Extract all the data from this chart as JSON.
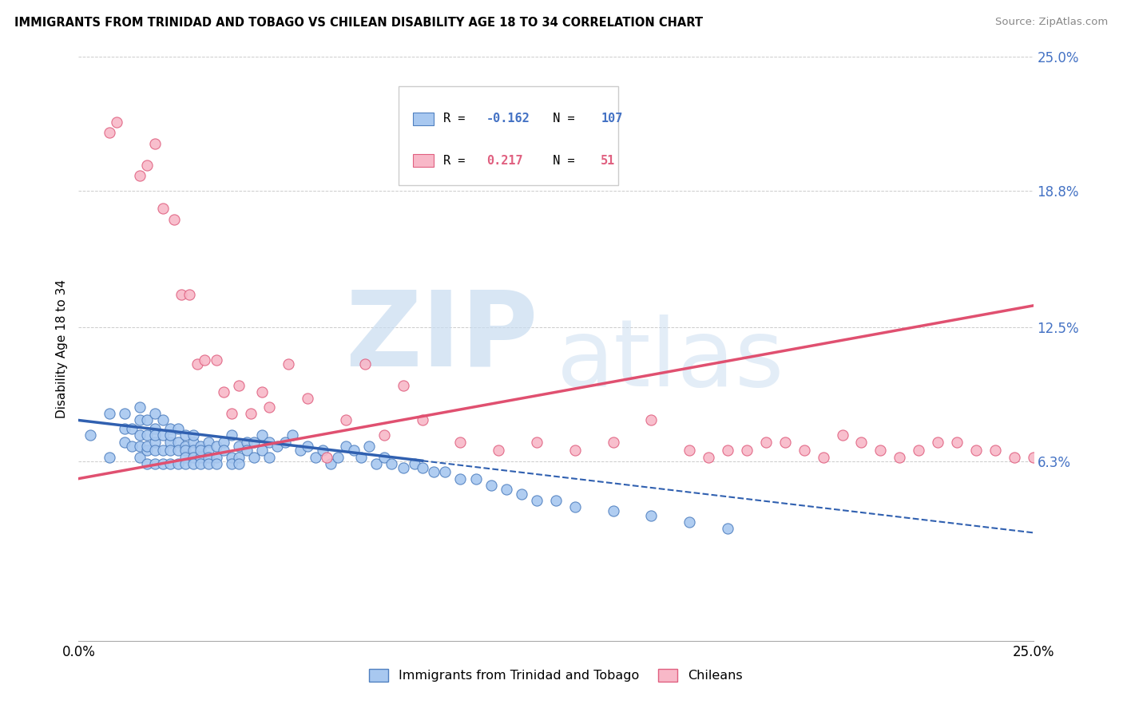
{
  "title": "IMMIGRANTS FROM TRINIDAD AND TOBAGO VS CHILEAN DISABILITY AGE 18 TO 34 CORRELATION CHART",
  "source": "Source: ZipAtlas.com",
  "ylabel": "Disability Age 18 to 34",
  "xmin": 0.0,
  "xmax": 0.25,
  "ymin": -0.02,
  "ymax": 0.25,
  "ytick_vals": [
    0.063,
    0.125,
    0.188,
    0.25
  ],
  "ytick_labels": [
    "6.3%",
    "12.5%",
    "18.8%",
    "25.0%"
  ],
  "blue_r": -0.162,
  "blue_n": 107,
  "pink_r": 0.217,
  "pink_n": 51,
  "blue_color": "#A8C8F0",
  "pink_color": "#F8B8C8",
  "blue_edge_color": "#5080C0",
  "pink_edge_color": "#E06080",
  "blue_line_color": "#3060B0",
  "pink_line_color": "#E05070",
  "legend_label_blue": "Immigrants from Trinidad and Tobago",
  "legend_label_pink": "Chileans",
  "watermark_zip": "ZIP",
  "watermark_atlas": "atlas",
  "blue_scatter_x": [
    0.003,
    0.008,
    0.008,
    0.012,
    0.012,
    0.012,
    0.014,
    0.014,
    0.016,
    0.016,
    0.016,
    0.016,
    0.016,
    0.018,
    0.018,
    0.018,
    0.018,
    0.018,
    0.02,
    0.02,
    0.02,
    0.02,
    0.02,
    0.02,
    0.022,
    0.022,
    0.022,
    0.022,
    0.024,
    0.024,
    0.024,
    0.024,
    0.024,
    0.026,
    0.026,
    0.026,
    0.026,
    0.028,
    0.028,
    0.028,
    0.028,
    0.028,
    0.03,
    0.03,
    0.03,
    0.03,
    0.03,
    0.032,
    0.032,
    0.032,
    0.032,
    0.034,
    0.034,
    0.034,
    0.034,
    0.036,
    0.036,
    0.036,
    0.038,
    0.038,
    0.04,
    0.04,
    0.04,
    0.042,
    0.042,
    0.042,
    0.044,
    0.044,
    0.046,
    0.046,
    0.048,
    0.048,
    0.05,
    0.05,
    0.052,
    0.054,
    0.056,
    0.058,
    0.06,
    0.062,
    0.064,
    0.066,
    0.068,
    0.07,
    0.072,
    0.074,
    0.076,
    0.078,
    0.08,
    0.082,
    0.085,
    0.088,
    0.09,
    0.093,
    0.096,
    0.1,
    0.104,
    0.108,
    0.112,
    0.116,
    0.12,
    0.125,
    0.13,
    0.14,
    0.15,
    0.16,
    0.17
  ],
  "blue_scatter_y": [
    0.075,
    0.085,
    0.065,
    0.085,
    0.072,
    0.078,
    0.07,
    0.078,
    0.082,
    0.088,
    0.075,
    0.07,
    0.065,
    0.082,
    0.075,
    0.068,
    0.062,
    0.07,
    0.085,
    0.078,
    0.072,
    0.068,
    0.075,
    0.062,
    0.082,
    0.075,
    0.068,
    0.062,
    0.078,
    0.072,
    0.068,
    0.075,
    0.062,
    0.078,
    0.072,
    0.068,
    0.062,
    0.075,
    0.07,
    0.068,
    0.065,
    0.062,
    0.072,
    0.068,
    0.065,
    0.062,
    0.075,
    0.07,
    0.065,
    0.062,
    0.068,
    0.072,
    0.068,
    0.065,
    0.062,
    0.07,
    0.065,
    0.062,
    0.072,
    0.068,
    0.065,
    0.062,
    0.075,
    0.07,
    0.065,
    0.062,
    0.072,
    0.068,
    0.072,
    0.065,
    0.068,
    0.075,
    0.065,
    0.072,
    0.07,
    0.072,
    0.075,
    0.068,
    0.07,
    0.065,
    0.068,
    0.062,
    0.065,
    0.07,
    0.068,
    0.065,
    0.07,
    0.062,
    0.065,
    0.062,
    0.06,
    0.062,
    0.06,
    0.058,
    0.058,
    0.055,
    0.055,
    0.052,
    0.05,
    0.048,
    0.045,
    0.045,
    0.042,
    0.04,
    0.038,
    0.035,
    0.032
  ],
  "pink_scatter_x": [
    0.008,
    0.01,
    0.016,
    0.018,
    0.02,
    0.022,
    0.025,
    0.027,
    0.029,
    0.031,
    0.033,
    0.036,
    0.038,
    0.04,
    0.042,
    0.045,
    0.048,
    0.05,
    0.055,
    0.06,
    0.065,
    0.07,
    0.075,
    0.08,
    0.085,
    0.09,
    0.1,
    0.11,
    0.12,
    0.13,
    0.14,
    0.15,
    0.16,
    0.165,
    0.17,
    0.175,
    0.18,
    0.185,
    0.19,
    0.195,
    0.2,
    0.205,
    0.21,
    0.215,
    0.22,
    0.225,
    0.23,
    0.235,
    0.24,
    0.245,
    0.25
  ],
  "pink_scatter_y": [
    0.215,
    0.22,
    0.195,
    0.2,
    0.21,
    0.18,
    0.175,
    0.14,
    0.14,
    0.108,
    0.11,
    0.11,
    0.095,
    0.085,
    0.098,
    0.085,
    0.095,
    0.088,
    0.108,
    0.092,
    0.065,
    0.082,
    0.108,
    0.075,
    0.098,
    0.082,
    0.072,
    0.068,
    0.072,
    0.068,
    0.072,
    0.082,
    0.068,
    0.065,
    0.068,
    0.068,
    0.072,
    0.072,
    0.068,
    0.065,
    0.075,
    0.072,
    0.068,
    0.065,
    0.068,
    0.072,
    0.072,
    0.068,
    0.068,
    0.065,
    0.065
  ],
  "blue_trend_x": [
    0.0,
    0.25
  ],
  "blue_trend_y_start": 0.082,
  "blue_trend_y_end": 0.03,
  "pink_trend_x": [
    0.0,
    0.25
  ],
  "pink_trend_y_start": 0.055,
  "pink_trend_y_end": 0.135
}
